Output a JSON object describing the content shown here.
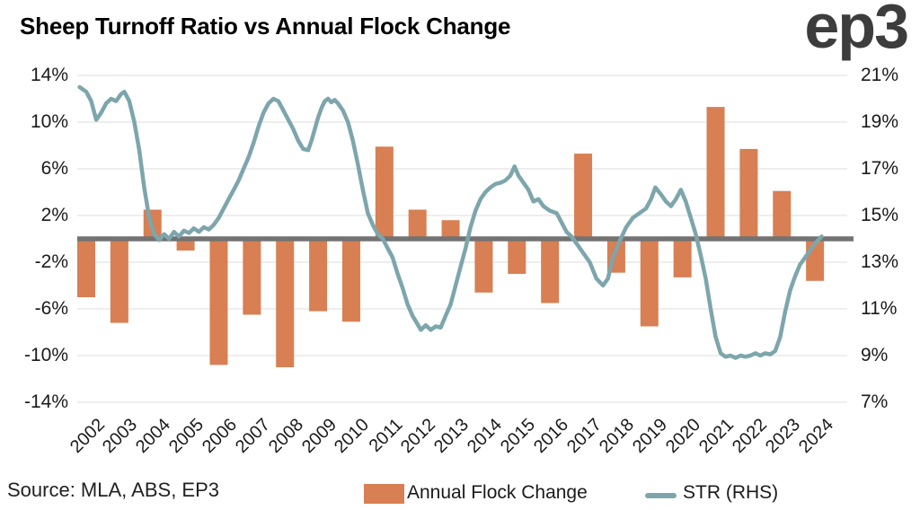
{
  "header": {
    "title": "Sheep Turnoff Ratio vs Annual Flock Change",
    "logo": "ep3"
  },
  "footer": {
    "source": "Source: MLA, ABS, EP3"
  },
  "legend": [
    {
      "label": "Annual Flock Change",
      "type": "bar"
    },
    {
      "label": "STR (RHS)",
      "type": "line"
    }
  ],
  "axes": {
    "left_ticks": [
      "14%",
      "10%",
      "6%",
      "2%",
      "-2%",
      "-6%",
      "-10%",
      "-14%"
    ],
    "right_ticks": [
      "21%",
      "19%",
      "17%",
      "15%",
      "13%",
      "11%",
      "9%",
      "7%"
    ],
    "x_labels": [
      "2002",
      "2003",
      "2004",
      "2005",
      "2006",
      "2007",
      "2008",
      "2009",
      "2010",
      "2011",
      "2012",
      "2013",
      "2014",
      "2015",
      "2016",
      "2017",
      "2018",
      "2019",
      "2020",
      "2021",
      "2022",
      "2023",
      "2024"
    ]
  },
  "colors": {
    "bar": "#D87F53",
    "line": "#7DA6AC",
    "zero_line": "#737373",
    "gridline": "#E8E8E8",
    "text": "#1A1A1A",
    "logo": "#3D3D3D",
    "background": "#FFFFFF"
  },
  "chart_data": {
    "type": "combo",
    "title": "Sheep Turnoff Ratio vs Annual Flock Change",
    "grid": true,
    "zero_line": true,
    "legend_position": "bottom",
    "categories": [
      2002,
      2003,
      2004,
      2005,
      2006,
      2007,
      2008,
      2009,
      2010,
      2011,
      2012,
      2013,
      2014,
      2015,
      2016,
      2017,
      2018,
      2019,
      2020,
      2021,
      2022,
      2023,
      2024
    ],
    "left_axis": {
      "min": -14,
      "max": 14,
      "ticks": [
        14,
        10,
        6,
        2,
        -2,
        -6,
        -10,
        -14
      ],
      "unit": "%"
    },
    "right_axis": {
      "min": 7,
      "max": 21,
      "ticks": [
        21,
        19,
        17,
        15,
        13,
        11,
        9,
        7
      ],
      "unit": "%"
    },
    "series": [
      {
        "name": "Annual Flock Change",
        "type": "bar",
        "axis": "left",
        "unit": "%",
        "color": "#D87F53",
        "values": [
          -5.0,
          -7.2,
          2.5,
          -1.0,
          -10.8,
          -6.5,
          -11.0,
          -6.2,
          -7.1,
          7.9,
          2.5,
          1.6,
          -4.6,
          -3.0,
          -5.5,
          7.3,
          -2.9,
          -7.5,
          -3.3,
          11.3,
          7.7,
          4.1,
          -3.6
        ]
      },
      {
        "name": "STR (RHS)",
        "type": "line",
        "axis": "right",
        "unit": "%",
        "color": "#7DA6AC",
        "points": [
          [
            2001.8,
            20.5
          ],
          [
            2002.0,
            20.3
          ],
          [
            2002.15,
            19.9
          ],
          [
            2002.3,
            19.1
          ],
          [
            2002.45,
            19.4
          ],
          [
            2002.6,
            19.8
          ],
          [
            2002.75,
            20.0
          ],
          [
            2002.9,
            19.9
          ],
          [
            2003.05,
            20.2
          ],
          [
            2003.15,
            20.3
          ],
          [
            2003.3,
            19.9
          ],
          [
            2003.45,
            19.0
          ],
          [
            2003.6,
            17.8
          ],
          [
            2003.75,
            16.2
          ],
          [
            2003.9,
            14.9
          ],
          [
            2004.05,
            14.2
          ],
          [
            2004.2,
            13.95
          ],
          [
            2004.35,
            14.2
          ],
          [
            2004.5,
            14.0
          ],
          [
            2004.65,
            14.3
          ],
          [
            2004.8,
            14.1
          ],
          [
            2004.95,
            14.35
          ],
          [
            2005.1,
            14.25
          ],
          [
            2005.25,
            14.45
          ],
          [
            2005.4,
            14.3
          ],
          [
            2005.55,
            14.5
          ],
          [
            2005.7,
            14.4
          ],
          [
            2005.85,
            14.6
          ],
          [
            2006.0,
            14.9
          ],
          [
            2006.15,
            15.3
          ],
          [
            2006.3,
            15.7
          ],
          [
            2006.45,
            16.1
          ],
          [
            2006.6,
            16.5
          ],
          [
            2006.75,
            17.0
          ],
          [
            2006.9,
            17.5
          ],
          [
            2007.05,
            18.1
          ],
          [
            2007.2,
            18.8
          ],
          [
            2007.35,
            19.4
          ],
          [
            2007.5,
            19.8
          ],
          [
            2007.65,
            20.0
          ],
          [
            2007.8,
            19.9
          ],
          [
            2007.95,
            19.5
          ],
          [
            2008.1,
            19.1
          ],
          [
            2008.25,
            18.7
          ],
          [
            2008.4,
            18.2
          ],
          [
            2008.55,
            17.85
          ],
          [
            2008.7,
            17.8
          ],
          [
            2008.8,
            18.2
          ],
          [
            2008.9,
            18.7
          ],
          [
            2009.0,
            19.2
          ],
          [
            2009.1,
            19.6
          ],
          [
            2009.2,
            19.9
          ],
          [
            2009.3,
            20.0
          ],
          [
            2009.4,
            19.85
          ],
          [
            2009.5,
            19.95
          ],
          [
            2009.6,
            19.8
          ],
          [
            2009.75,
            19.5
          ],
          [
            2009.9,
            19.0
          ],
          [
            2010.05,
            18.2
          ],
          [
            2010.2,
            17.2
          ],
          [
            2010.35,
            16.1
          ],
          [
            2010.5,
            15.1
          ],
          [
            2010.65,
            14.6
          ],
          [
            2010.8,
            14.2
          ],
          [
            2010.95,
            14.0
          ],
          [
            2011.1,
            13.6
          ],
          [
            2011.25,
            13.2
          ],
          [
            2011.4,
            12.5
          ],
          [
            2011.55,
            11.9
          ],
          [
            2011.7,
            11.2
          ],
          [
            2011.85,
            10.7
          ],
          [
            2012.0,
            10.35
          ],
          [
            2012.1,
            10.1
          ],
          [
            2012.25,
            10.3
          ],
          [
            2012.4,
            10.1
          ],
          [
            2012.55,
            10.25
          ],
          [
            2012.7,
            10.2
          ],
          [
            2012.85,
            10.7
          ],
          [
            2013.0,
            11.2
          ],
          [
            2013.15,
            12.0
          ],
          [
            2013.3,
            12.8
          ],
          [
            2013.45,
            13.6
          ],
          [
            2013.6,
            14.5
          ],
          [
            2013.75,
            15.2
          ],
          [
            2013.9,
            15.7
          ],
          [
            2014.05,
            16.0
          ],
          [
            2014.2,
            16.2
          ],
          [
            2014.35,
            16.35
          ],
          [
            2014.5,
            16.4
          ],
          [
            2014.65,
            16.5
          ],
          [
            2014.8,
            16.7
          ],
          [
            2014.93,
            17.1
          ],
          [
            2015.05,
            16.7
          ],
          [
            2015.2,
            16.4
          ],
          [
            2015.35,
            16.1
          ],
          [
            2015.5,
            15.6
          ],
          [
            2015.65,
            15.7
          ],
          [
            2015.8,
            15.4
          ],
          [
            2016.0,
            15.2
          ],
          [
            2016.2,
            15.1
          ],
          [
            2016.35,
            14.7
          ],
          [
            2016.5,
            14.3
          ],
          [
            2016.65,
            14.1
          ],
          [
            2016.8,
            13.8
          ],
          [
            2017.0,
            13.4
          ],
          [
            2017.2,
            13.0
          ],
          [
            2017.4,
            12.3
          ],
          [
            2017.6,
            12.0
          ],
          [
            2017.75,
            12.3
          ],
          [
            2017.9,
            13.2
          ],
          [
            2018.1,
            13.9
          ],
          [
            2018.3,
            14.5
          ],
          [
            2018.5,
            14.9
          ],
          [
            2018.7,
            15.1
          ],
          [
            2018.9,
            15.3
          ],
          [
            2019.05,
            15.7
          ],
          [
            2019.18,
            16.2
          ],
          [
            2019.35,
            15.9
          ],
          [
            2019.5,
            15.6
          ],
          [
            2019.65,
            15.4
          ],
          [
            2019.8,
            15.7
          ],
          [
            2019.95,
            16.1
          ],
          [
            2020.1,
            15.6
          ],
          [
            2020.25,
            14.9
          ],
          [
            2020.4,
            14.2
          ],
          [
            2020.55,
            13.3
          ],
          [
            2020.7,
            12.3
          ],
          [
            2020.85,
            11.0
          ],
          [
            2021.0,
            9.8
          ],
          [
            2021.15,
            9.1
          ],
          [
            2021.3,
            8.95
          ],
          [
            2021.45,
            9.0
          ],
          [
            2021.6,
            8.9
          ],
          [
            2021.75,
            9.0
          ],
          [
            2021.9,
            8.95
          ],
          [
            2022.05,
            9.0
          ],
          [
            2022.2,
            9.1
          ],
          [
            2022.35,
            9.0
          ],
          [
            2022.5,
            9.1
          ],
          [
            2022.65,
            9.05
          ],
          [
            2022.8,
            9.2
          ],
          [
            2022.95,
            9.8
          ],
          [
            2023.1,
            10.9
          ],
          [
            2023.25,
            11.8
          ],
          [
            2023.4,
            12.4
          ],
          [
            2023.55,
            12.9
          ],
          [
            2023.7,
            13.2
          ],
          [
            2023.85,
            13.5
          ],
          [
            2024.0,
            13.8
          ],
          [
            2024.2,
            14.1
          ]
        ]
      }
    ]
  }
}
